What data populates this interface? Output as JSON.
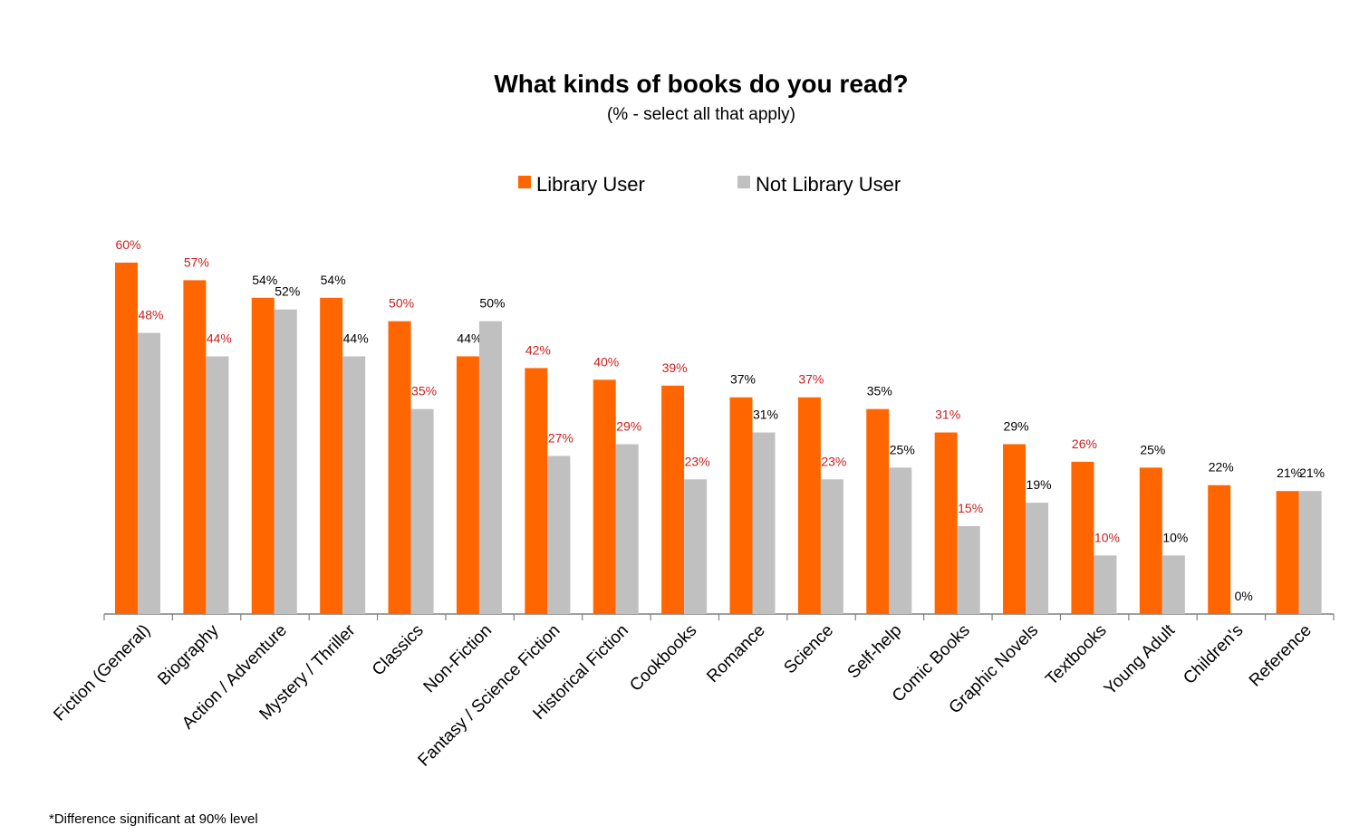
{
  "chart_data": {
    "type": "bar",
    "title": "What kinds of books do you read?",
    "subtitle": "(% - select all that apply)",
    "categories": [
      "Fiction (General)",
      "Biography",
      "Action / Adventure",
      "Mystery / Thriller",
      "Classics",
      "Non-Fiction",
      "Fantasy / Science Fiction",
      "Historical Fiction",
      "Cookbooks",
      "Romance",
      "Science",
      "Self-help",
      "Comic Books",
      "Graphic Novels",
      "Textbooks",
      "Young Adult",
      "Children's",
      "Reference"
    ],
    "series": [
      {
        "name": "Library User",
        "color": "#ff6600",
        "values": [
          60,
          57,
          54,
          54,
          50,
          44,
          42,
          40,
          39,
          37,
          37,
          35,
          31,
          29,
          26,
          25,
          22,
          21
        ]
      },
      {
        "name": "Not Library User",
        "color": "#c0c0c0",
        "values": [
          48,
          44,
          52,
          44,
          35,
          50,
          27,
          29,
          23,
          31,
          23,
          25,
          15,
          19,
          10,
          10,
          0,
          21
        ]
      }
    ],
    "significant": [
      true,
      true,
      false,
      false,
      true,
      false,
      true,
      true,
      true,
      false,
      true,
      false,
      true,
      false,
      true,
      false,
      false,
      false
    ],
    "value_suffix": "%",
    "ylim": [
      0,
      60
    ],
    "legend_position": "top-center",
    "grid": false,
    "significant_label_color": "#cc1c1c",
    "normal_label_color": "#000000"
  },
  "footnote": "*Difference significant at 90% level"
}
